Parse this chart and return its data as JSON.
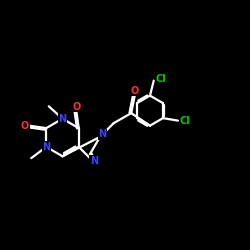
{
  "background_color": "#000000",
  "bond_color": "#ffffff",
  "atom_colors": {
    "N": "#4040ff",
    "O": "#ff3030",
    "Cl": "#00cc00",
    "C": "#ffffff"
  },
  "figsize": [
    2.5,
    2.5
  ],
  "dpi": 100,
  "xlim": [
    0,
    10
  ],
  "ylim": [
    0,
    10
  ]
}
